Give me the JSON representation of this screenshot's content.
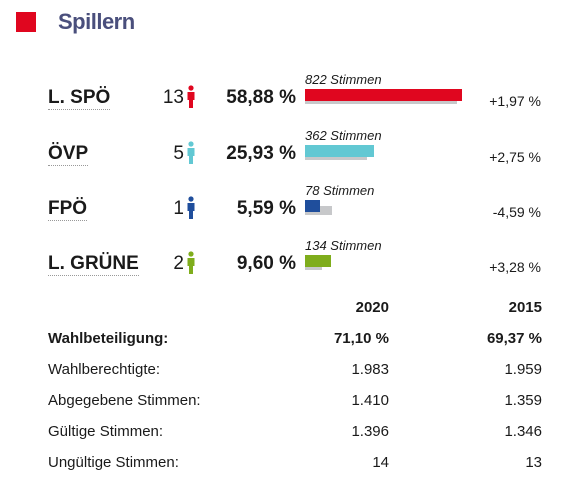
{
  "header": {
    "title": "Spillern"
  },
  "colors": {
    "accent": "#e0061f",
    "previous": "#c7c8ca"
  },
  "chart_data": {
    "type": "bar",
    "title": "Spillern",
    "categories": [
      "L. SPÖ",
      "ÖVP",
      "FPÖ",
      "L. GRÜNE"
    ],
    "series": [
      {
        "name": "2020",
        "values": [
          58.88,
          25.93,
          5.59,
          9.6
        ]
      },
      {
        "name": "2015",
        "values": [
          56.91,
          23.18,
          10.18,
          6.32
        ]
      }
    ],
    "ylim": [
      0,
      60
    ]
  },
  "parties": [
    {
      "name": "L. SPÖ",
      "seats": "13",
      "percent": "58,88 %",
      "votes_label": "822 Stimmen",
      "change": "+1,97 %",
      "color": "#e0061f",
      "icon": "person-icon"
    },
    {
      "name": "ÖVP",
      "seats": "5",
      "percent": "25,93 %",
      "votes_label": "362 Stimmen",
      "change": "+2,75 %",
      "color": "#62c8d3",
      "icon": "person-icon"
    },
    {
      "name": "FPÖ",
      "seats": "1",
      "percent": "5,59 %",
      "votes_label": "78 Stimmen",
      "change": "-4,59 %",
      "color": "#1f4e9c",
      "icon": "person-icon"
    },
    {
      "name": "L. GRÜNE",
      "seats": "2",
      "percent": "9,60 %",
      "votes_label": "134 Stimmen",
      "change": "+3,28 %",
      "color": "#7fad1c",
      "icon": "person-icon"
    }
  ],
  "stats": {
    "col_2020": "2020",
    "col_2015": "2015",
    "rows": [
      {
        "label": "Wahlbeteiligung:",
        "v2020": "71,10 %",
        "v2015": "69,37 %"
      },
      {
        "label": "Wahlberechtigte:",
        "v2020": "1.983",
        "v2015": "1.959"
      },
      {
        "label": "Abgegebene Stimmen:",
        "v2020": "1.410",
        "v2015": "1.359"
      },
      {
        "label": "Gültige Stimmen:",
        "v2020": "1.396",
        "v2015": "1.346"
      },
      {
        "label": "Ungültige Stimmen:",
        "v2020": "14",
        "v2015": "13"
      }
    ]
  }
}
